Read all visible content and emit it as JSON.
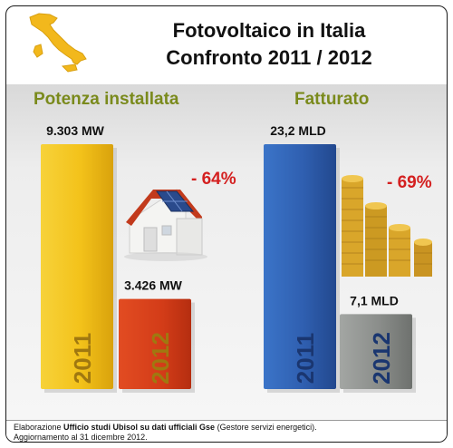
{
  "header": {
    "title_line1": "Fotovoltaico in Italia",
    "title_line2": "Confronto 2011 / 2012"
  },
  "chart_data": [
    {
      "type": "bar",
      "title": "Potenza installata",
      "categories": [
        "2011",
        "2012"
      ],
      "values": [
        9303,
        3426
      ],
      "value_labels": [
        "9.303 MW",
        "3.426 MW"
      ],
      "unit": "MW",
      "change_label": "- 64%",
      "colors": [
        "#f2c316",
        "#d8401c"
      ]
    },
    {
      "type": "bar",
      "title": "Fatturato",
      "categories": [
        "2011",
        "2012"
      ],
      "values": [
        23.2,
        7.1
      ],
      "value_labels": [
        "23,2 MLD",
        "7,1 MLD"
      ],
      "unit": "MLD",
      "change_label": "- 69%",
      "colors": [
        "#2f62b4",
        "#8a8d8a"
      ]
    }
  ],
  "footer": {
    "line1_prefix": "Elaborazione ",
    "line1_bold": "Ufficio studi Ubisol su dati ufficiali Gse",
    "line1_suffix": " (Gestore servizi energetici).",
    "line2": "Aggiornamento al 31 dicembre 2012."
  },
  "colors": {
    "accent_title": "#7a8a1c",
    "change_label": "#d42020"
  }
}
